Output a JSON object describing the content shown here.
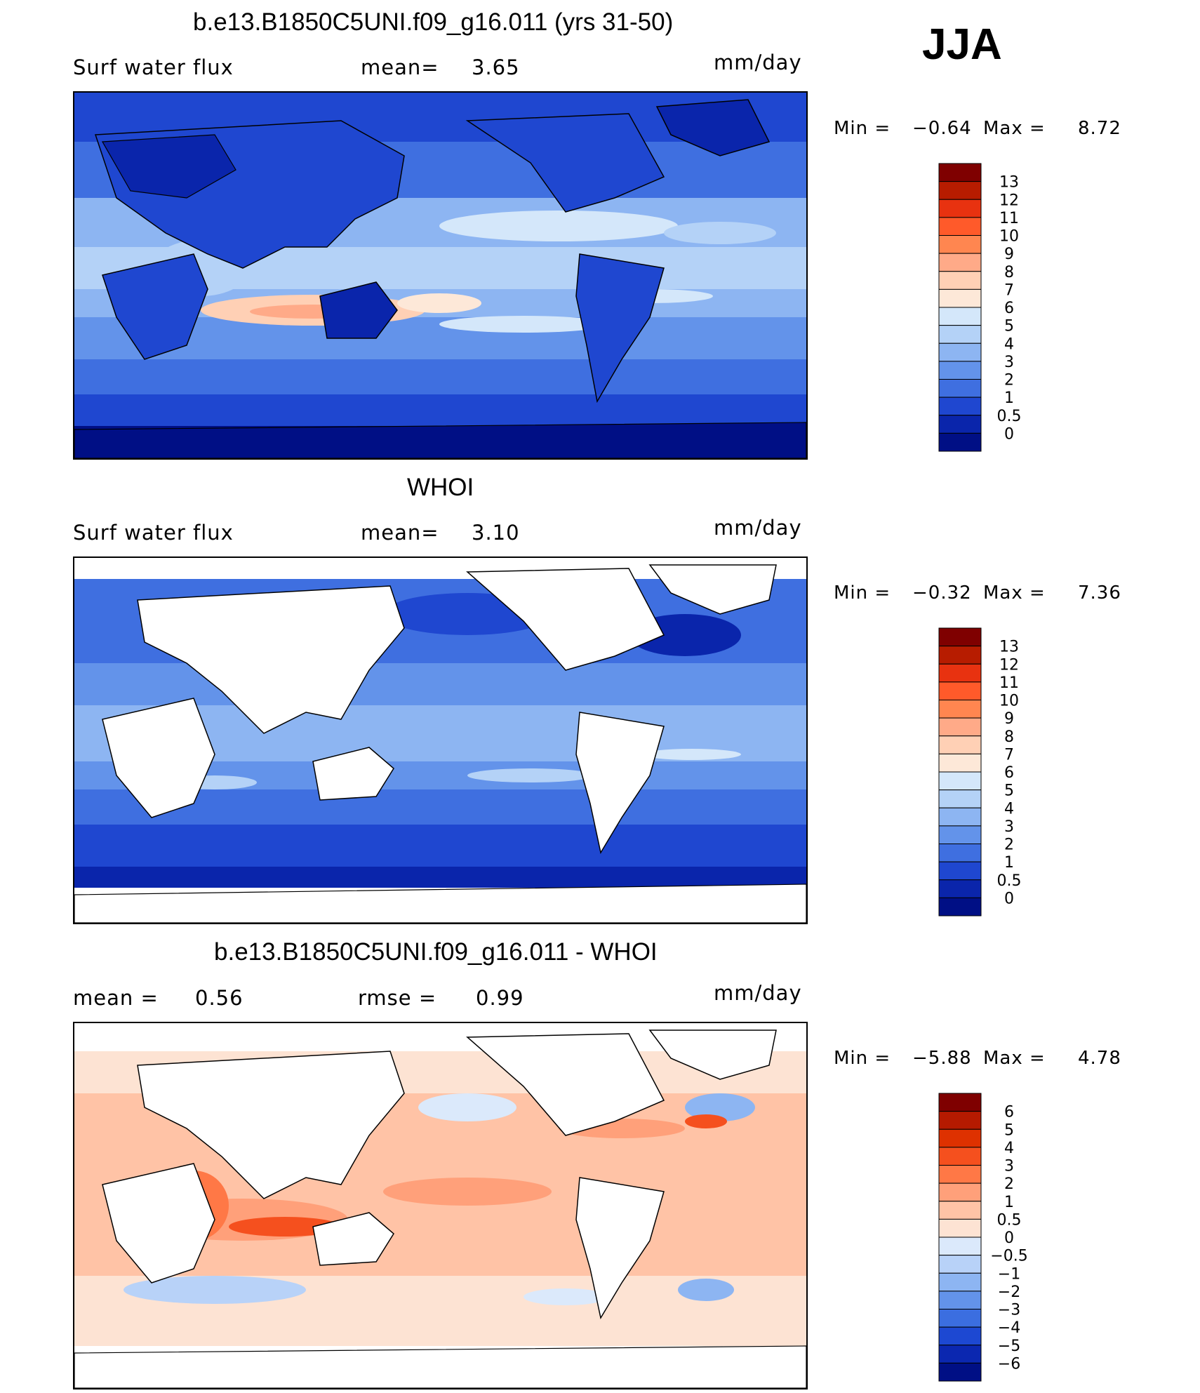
{
  "season": "JJA",
  "panels": [
    {
      "id": "model",
      "title": "b.e13.B1850C5UNI.f09_g16.011 (yrs 31-50)",
      "left_label": "Surf water flux",
      "center_label": "mean=",
      "center_value": "3.65",
      "right_extra_label": "",
      "right_extra_value": "",
      "units": "mm/day",
      "min_label": "Min =",
      "min_value": "−0.64",
      "max_label": "Max =",
      "max_value": "8.72",
      "colorbar_labels": [
        "13",
        "12",
        "11",
        "10",
        "9",
        "8",
        "7",
        "6",
        "5",
        "4",
        "3",
        "2",
        "1",
        "0.5",
        "0"
      ],
      "colorbar_colors": [
        "#7f0000",
        "#b71c00",
        "#e83210",
        "#ff5a2a",
        "#ff8650",
        "#ffaa88",
        "#ffd0b5",
        "#fde8d8",
        "#d4e7fa",
        "#b4d2f7",
        "#8db5f2",
        "#6393ea",
        "#3f6fe0",
        "#1f47d0",
        "#0a25ab",
        "#000f85"
      ]
    },
    {
      "id": "obs",
      "title": "WHOI",
      "left_label": "Surf water flux",
      "center_label": "mean=",
      "center_value": "3.10",
      "right_extra_label": "",
      "right_extra_value": "",
      "units": "mm/day",
      "min_label": "Min =",
      "min_value": "−0.32",
      "max_label": "Max =",
      "max_value": "7.36",
      "colorbar_labels": [
        "13",
        "12",
        "11",
        "10",
        "9",
        "8",
        "7",
        "6",
        "5",
        "4",
        "3",
        "2",
        "1",
        "0.5",
        "0"
      ],
      "colorbar_colors": [
        "#7f0000",
        "#b71c00",
        "#e83210",
        "#ff5a2a",
        "#ff8650",
        "#ffaa88",
        "#ffd0b5",
        "#fde8d8",
        "#d4e7fa",
        "#b4d2f7",
        "#8db5f2",
        "#6393ea",
        "#3f6fe0",
        "#1f47d0",
        "#0a25ab",
        "#000f85"
      ]
    },
    {
      "id": "diff",
      "title": "b.e13.B1850C5UNI.f09_g16.011 - WHOI",
      "left_label": "mean =",
      "left_value": "0.56",
      "center_label": "rmse =",
      "center_value": "0.99",
      "units": "mm/day",
      "min_label": "Min =",
      "min_value": "−5.88",
      "max_label": "Max =",
      "max_value": "4.78",
      "colorbar_labels": [
        "6",
        "5",
        "4",
        "3",
        "2",
        "1",
        "0.5",
        "0",
        "−0.5",
        "−1",
        "−2",
        "−3",
        "−4",
        "−5",
        "−6"
      ],
      "colorbar_colors": [
        "#7f0000",
        "#b51a00",
        "#de3100",
        "#f5501e",
        "#ff7846",
        "#ffa07a",
        "#ffc3a6",
        "#fde3d3",
        "#dbe9fb",
        "#b8d2f8",
        "#8db5f2",
        "#6393ea",
        "#3b6ee0",
        "#1d48d2",
        "#0b27b0",
        "#000f85"
      ]
    }
  ],
  "chart_data": [
    {
      "type": "heatmap",
      "title": "b.e13.B1850C5UNI.f09_g16.011 (yrs 31-50)",
      "variable": "Surf water flux",
      "units": "mm/day",
      "season": "JJA",
      "mean": 3.65,
      "min": -0.64,
      "max": 8.72,
      "contour_levels": [
        0,
        0.5,
        1,
        2,
        3,
        4,
        5,
        6,
        7,
        8,
        9,
        10,
        11,
        12,
        13
      ]
    },
    {
      "type": "heatmap",
      "title": "WHOI",
      "variable": "Surf water flux",
      "units": "mm/day",
      "season": "JJA",
      "mean": 3.1,
      "min": -0.32,
      "max": 7.36,
      "contour_levels": [
        0,
        0.5,
        1,
        2,
        3,
        4,
        5,
        6,
        7,
        8,
        9,
        10,
        11,
        12,
        13
      ]
    },
    {
      "type": "heatmap",
      "title": "b.e13.B1850C5UNI.f09_g16.011 - WHOI",
      "units": "mm/day",
      "season": "JJA",
      "mean": 0.56,
      "rmse": 0.99,
      "min": -5.88,
      "max": 4.78,
      "contour_levels": [
        -6,
        -5,
        -4,
        -3,
        -2,
        -1,
        -0.5,
        0,
        0.5,
        1,
        2,
        3,
        4,
        5,
        6
      ]
    }
  ]
}
